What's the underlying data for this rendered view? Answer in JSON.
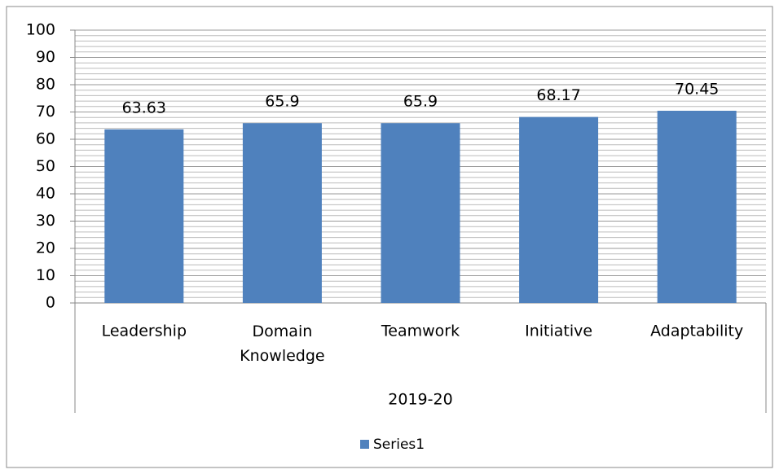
{
  "chart_data": {
    "type": "bar",
    "categories": [
      "Leadership",
      "Domain Knowledge",
      "Teamwork",
      "Initiative",
      "Adaptability"
    ],
    "group_label": "2019-20",
    "series": [
      {
        "name": "Series1",
        "color": "#4f81bd",
        "values": [
          63.63,
          65.9,
          65.9,
          68.17,
          70.45
        ]
      }
    ],
    "ylim": [
      0,
      100
    ],
    "yticks": [
      0,
      10,
      20,
      30,
      40,
      50,
      60,
      70,
      80,
      90,
      100
    ],
    "minor_yticks": [
      2,
      4,
      6,
      8,
      12,
      14,
      16,
      18,
      22,
      24,
      26,
      28,
      32,
      34,
      36,
      38,
      42,
      44,
      46,
      48,
      52,
      54,
      56,
      58,
      62,
      64,
      66,
      68,
      72,
      74,
      76,
      78,
      82,
      84,
      86,
      88,
      92,
      94,
      96,
      98
    ],
    "grid": true,
    "legend": "bottom"
  }
}
